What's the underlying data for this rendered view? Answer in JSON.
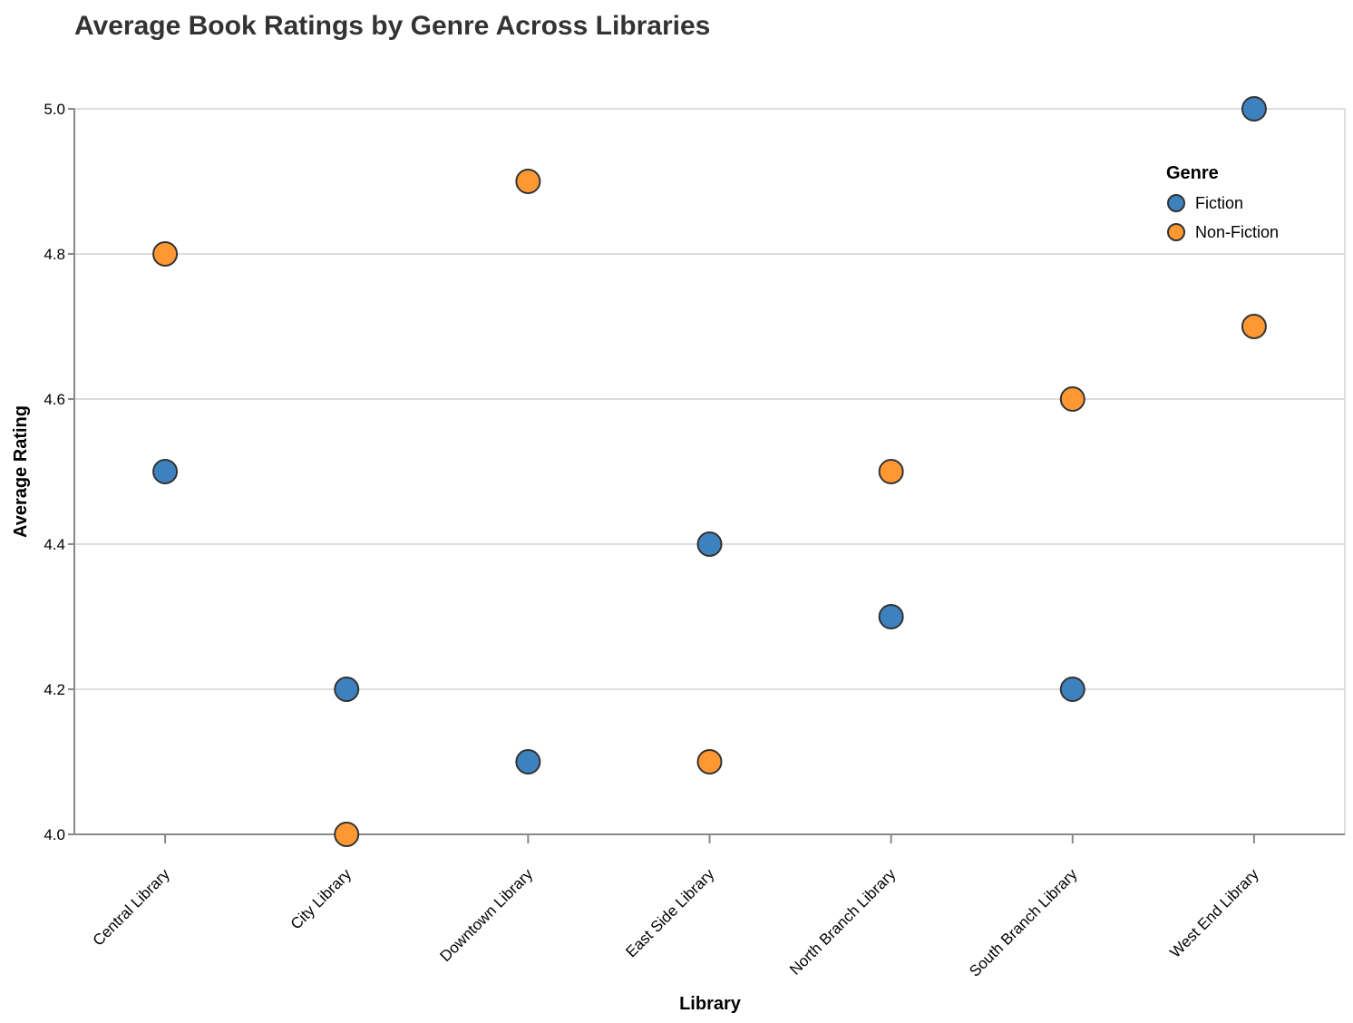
{
  "chart_data": {
    "type": "scatter",
    "title": "Average Book Ratings by Genre Across Libraries",
    "xlabel": "Library",
    "ylabel": "Average Rating",
    "categories": [
      "Central Library",
      "City Library",
      "Downtown Library",
      "East Side Library",
      "North Branch Library",
      "South Branch Library",
      "West End Library"
    ],
    "ylim": [
      4.0,
      5.0
    ],
    "yticks": [
      "4.0",
      "4.2",
      "4.4",
      "4.6",
      "4.8",
      "5.0"
    ],
    "grid": true,
    "legend": {
      "title": "Genre",
      "placement": "top-right",
      "items": [
        {
          "label": "Fiction",
          "color": "#3d82bf"
        },
        {
          "label": "Non-Fiction",
          "color": "#ff9833"
        }
      ]
    },
    "series": [
      {
        "name": "Fiction",
        "color": "#3d82bf",
        "values": [
          4.5,
          4.2,
          4.1,
          4.4,
          4.3,
          4.2,
          5.0
        ]
      },
      {
        "name": "Non-Fiction",
        "color": "#ff9833",
        "values": [
          4.8,
          4.0,
          4.9,
          4.1,
          4.5,
          4.6,
          4.7
        ]
      }
    ]
  }
}
